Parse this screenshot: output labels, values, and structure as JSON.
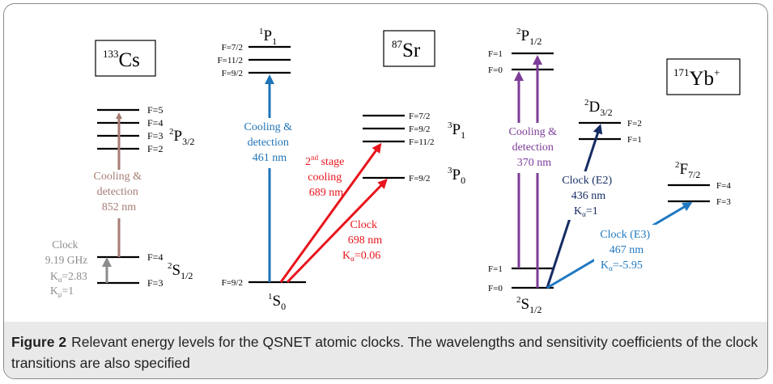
{
  "caption": {
    "label": "Figure 2",
    "text": "Relevant energy levels for the QSNET atomic clocks. The wavelengths and sensitivity coefficients of the clock transitions are also specified"
  },
  "colors": {
    "cs_brown": "#a67c74",
    "cs_grey": "#8c8c8c",
    "sr_blue": "#1f73b7",
    "sr_red": "#e8141c",
    "yb_purple": "#7d3c98",
    "yb_navy": "#162d63",
    "yb_blue": "#1f78c1"
  },
  "cs": {
    "element": "Cs",
    "mass": "133",
    "upper_state": {
      "term": "P",
      "mult": "2",
      "j": "3/2"
    },
    "lower_state": {
      "term": "S",
      "mult": "2",
      "j": "1/2"
    },
    "upper_F": [
      "F=5",
      "F=4",
      "F=3",
      "F=2"
    ],
    "lower_F": [
      "F=4",
      "F=3"
    ],
    "cooling": [
      "Cooling &",
      "detection",
      "852 nm"
    ],
    "clock": {
      "line1": "Clock",
      "line2": "9.19 GHz",
      "k_alpha": "=2.83",
      "k_mu": "=1"
    }
  },
  "sr": {
    "element": "Sr",
    "mass": "87",
    "p1_singlet": {
      "term": "P",
      "mult": "1",
      "j": "1"
    },
    "s0": {
      "term": "S",
      "mult": "1",
      "j": "0"
    },
    "p1_triplet": {
      "term": "P",
      "mult": "3",
      "j": "1"
    },
    "p0_triplet": {
      "term": "P",
      "mult": "3",
      "j": "0"
    },
    "p1_singlet_F": [
      "F=7/2",
      "F=11/2",
      "F=9/2"
    ],
    "p1_triplet_F": [
      "F=7/2",
      "F=9/2",
      "F=11/2"
    ],
    "p0_F": "F=9/2",
    "s0_F": "F=9/2",
    "cooling": [
      "Cooling &",
      "detection",
      "461 nm"
    ],
    "second_stage": {
      "line1_pre": "2",
      "line1_sup": "nd",
      "line1_post": " stage",
      "line2": "cooling",
      "line3": "689 nm"
    },
    "clock": {
      "line1": "Clock",
      "line2": "698 nm",
      "k_alpha": "=0.06"
    }
  },
  "yb": {
    "element": "Yb",
    "mass": "171",
    "charge": "+",
    "p12": {
      "term": "P",
      "mult": "2",
      "j": "1/2"
    },
    "d32": {
      "term": "D",
      "mult": "2",
      "j": "3/2"
    },
    "f72": {
      "term": "F",
      "mult": "2",
      "j": "7/2"
    },
    "s12": {
      "term": "S",
      "mult": "2",
      "j": "1/2"
    },
    "p12_F": [
      "F=1",
      "F=0"
    ],
    "d32_F": [
      "F=2",
      "F=1"
    ],
    "f72_F": [
      "F=4",
      "F=3"
    ],
    "s12_F": [
      "F=1",
      "F=0"
    ],
    "cooling": [
      "Cooling &",
      "detection",
      "370 nm"
    ],
    "clock_e2": {
      "line1": "Clock (E2)",
      "line2": "436 nm",
      "k_alpha": "=1"
    },
    "clock_e3": {
      "line1": "Clock (E3)",
      "line2": "467 nm",
      "k_alpha": "=-5.95"
    }
  },
  "k_symbols": {
    "K": "K",
    "alpha": "α",
    "mu": "μ"
  }
}
